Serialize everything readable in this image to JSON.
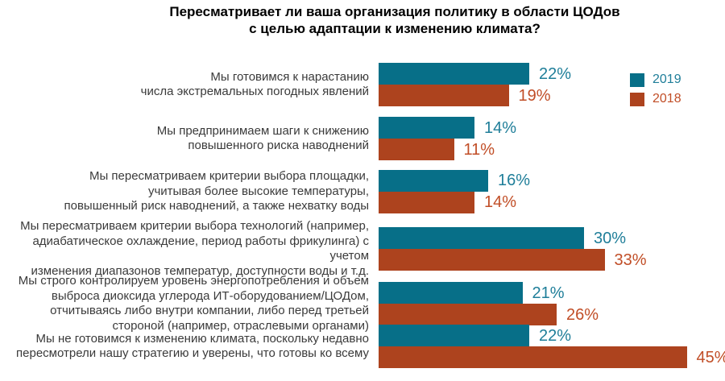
{
  "title": {
    "line1": "Пересматривает ли ваша организация политику в области ЦОДов",
    "line2": "с целью адаптации к изменению климата?"
  },
  "colors": {
    "teal_bar": "#076f88",
    "teal_text": "#1f7e99",
    "orange_bar": "#ad431e",
    "orange_text": "#c14e27",
    "category_text": "#3a3a3a",
    "title_text": "#000000",
    "background": "#ffffff"
  },
  "chart_data": {
    "type": "bar",
    "orientation": "horizontal",
    "title": "Пересматривает ли ваша организация политику в области ЦОДов с целью адаптации к изменению климата?",
    "unit": "%",
    "value_range": [
      0,
      45
    ],
    "grid": false,
    "legend_position": "top-right",
    "categories": [
      "Мы готовимся к нарастанию\nчисла экстремальных погодных явлений",
      "Мы предпринимаем шаги к снижению\nповышенного риска наводнений",
      "Мы пересматриваем критерии выбора площадки,\nучитывая более высокие температуры,\nповышенный риск наводнений, а также нехватку воды",
      "Мы пересматриваем критерии выбора технологий (например,\nадиабатическое охлаждение, период работы фрикулинга) с учетом\nизменения диапазонов температур, доступности воды и т.д.",
      "Мы строго контролируем уровень энергопотребления и объем\nвыброса диоксида углерода ИТ-оборудованием/ЦОДом,\nотчитываясь либо внутри компании, либо перед третьей\nстороной (например, отраслевыми органами)",
      "Мы не готовимся к изменению климата, поскольку недавно\nпересмотрели нашу стратегию и уверены, что готовы ко всему"
    ],
    "series": [
      {
        "name": "2019",
        "values": [
          22,
          14,
          16,
          30,
          21,
          22
        ],
        "bar_color": "#076f88",
        "text_color": "#1f7e99"
      },
      {
        "name": "2018",
        "values": [
          19,
          11,
          14,
          33,
          26,
          45
        ],
        "bar_color": "#ad431e",
        "text_color": "#c14e27"
      }
    ]
  }
}
